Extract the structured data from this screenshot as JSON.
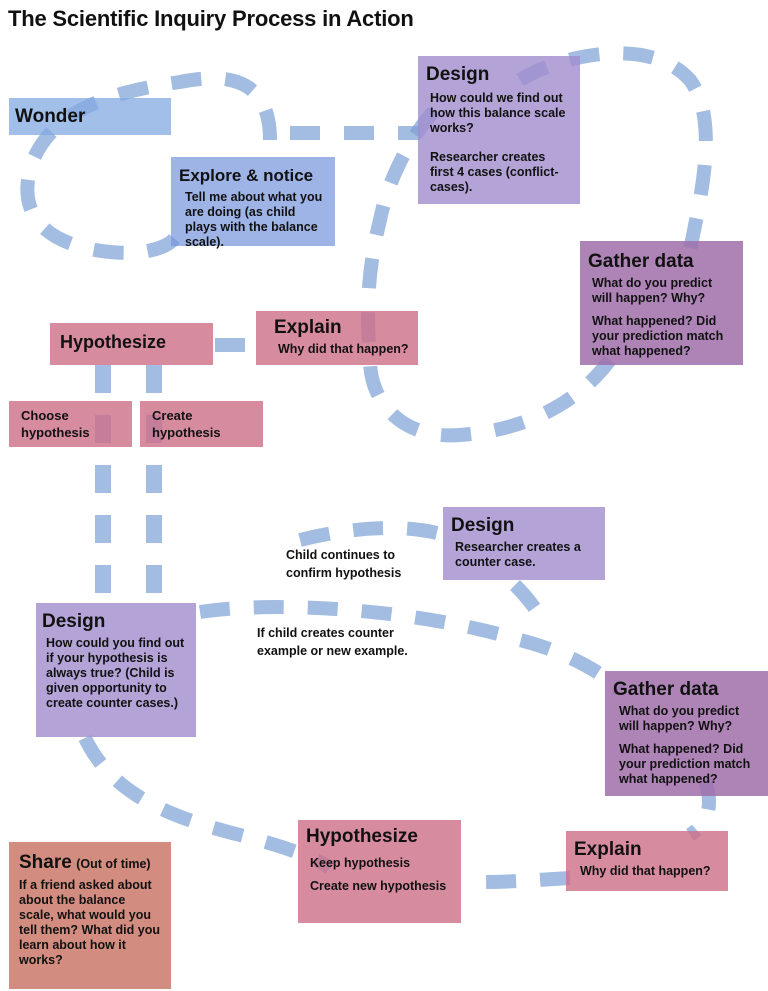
{
  "title": "The Scientific Inquiry Process in Action",
  "wonder": {
    "heading": "Wonder"
  },
  "explore": {
    "heading": "Explore & notice",
    "text": "Tell me about what you are doing (as child plays with the balance scale)."
  },
  "design1": {
    "heading": "Design",
    "text1": "How could we find out how this balance scale works?",
    "text2": "Researcher creates first 4 cases (conflict-cases)."
  },
  "gather1": {
    "heading": "Gather data",
    "text1": "What do you predict will happen?  Why?",
    "text2": "What happened?  Did your prediction match what happened?"
  },
  "explain1": {
    "heading": "Explain",
    "text": "Why did that happen?"
  },
  "hypothesize1": {
    "heading": "Hypothesize"
  },
  "choose": {
    "text": "Choose hypothesis"
  },
  "create": {
    "text": "Create hypothesis"
  },
  "design2": {
    "heading": "Design",
    "text": "Researcher creates a counter case."
  },
  "continue_label": "Child continues to confirm hypothesis",
  "counter_label": "If child creates counter example or new example.",
  "design3": {
    "heading": "Design",
    "text": "How could you find out if your hypothesis is always true? (Child is given opportunity to create counter cases.)"
  },
  "gather2": {
    "heading": "Gather data",
    "text1": "What do you predict will happen?  Why?",
    "text2": "What happened?  Did your prediction match what happened?"
  },
  "share": {
    "heading": "Share",
    "note": "(Out of time)",
    "text": "If a friend asked about about the balance scale, what would you tell them?  What did you learn about how it works?"
  },
  "hypothesize2": {
    "heading": "Hypothesize",
    "text1": "Keep hypothesis",
    "text2": "Create new hypothesis"
  },
  "explain2": {
    "heading": "Explain",
    "text": "Why did that happen?"
  }
}
